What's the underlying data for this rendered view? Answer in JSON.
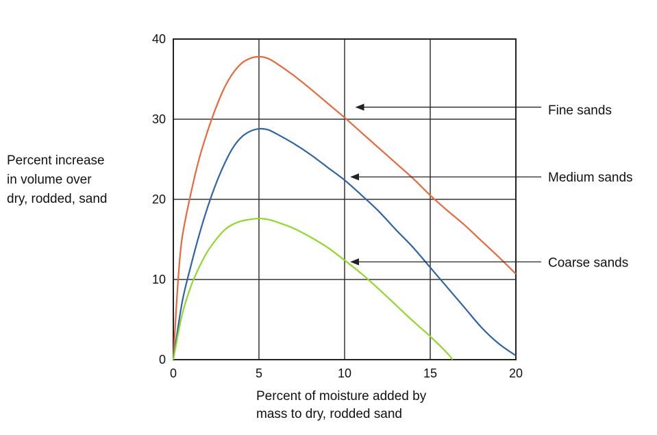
{
  "chart_data": {
    "type": "line",
    "xlabel": [
      "Percent of moisture added by",
      "mass to dry, rodded sand"
    ],
    "ylabel": [
      "Percent increase",
      "in volume over",
      "dry, rodded, sand"
    ],
    "xlim": [
      0,
      20
    ],
    "ylim": [
      0,
      40
    ],
    "xticks": [
      0,
      5,
      10,
      15,
      20
    ],
    "yticks": [
      0,
      10,
      20,
      30,
      40
    ],
    "grid": true,
    "series": [
      {
        "name": "Fine sands",
        "color": "#e8683c",
        "x": [
          0,
          0.25,
          0.5,
          1,
          1.5,
          2,
          2.5,
          3,
          3.5,
          4,
          4.5,
          5,
          5.5,
          6,
          7,
          8,
          9,
          10,
          11,
          12,
          13,
          14,
          15,
          16,
          17,
          18,
          19,
          20
        ],
        "y": [
          0,
          9,
          15,
          20.5,
          25,
          28.5,
          31.5,
          34,
          35.8,
          37,
          37.6,
          37.8,
          37.6,
          37,
          35.5,
          33.8,
          32,
          30.2,
          28.3,
          26.4,
          24.5,
          22.6,
          20.5,
          18.6,
          16.8,
          14.8,
          12.8,
          10.7
        ]
      },
      {
        "name": "Medium sands",
        "color": "#2e62a8",
        "x": [
          0,
          0.5,
          1,
          1.5,
          2,
          2.5,
          3,
          3.5,
          4,
          4.5,
          5,
          5.5,
          6,
          7,
          8,
          9,
          10,
          11,
          12,
          13,
          14,
          15,
          16,
          17,
          18,
          19,
          20
        ],
        "y": [
          0,
          7,
          11.5,
          15.5,
          19,
          22,
          24.5,
          26.5,
          27.8,
          28.5,
          28.8,
          28.7,
          28.2,
          27,
          25.6,
          24,
          22.4,
          20.5,
          18.5,
          16.2,
          14,
          11.5,
          9,
          6.5,
          4,
          2,
          0.5
        ]
      },
      {
        "name": "Coarse sands",
        "color": "#8fd82c",
        "x": [
          0,
          0.5,
          1,
          1.5,
          2,
          2.5,
          3,
          3.5,
          4,
          4.5,
          5,
          5.5,
          6,
          7,
          8,
          9,
          10,
          11,
          12,
          13,
          14,
          15,
          16,
          16.3
        ],
        "y": [
          0,
          5.5,
          9,
          11.5,
          13.5,
          15,
          16.2,
          16.9,
          17.3,
          17.5,
          17.6,
          17.5,
          17.2,
          16.4,
          15.3,
          14,
          12.4,
          10.7,
          8.8,
          6.8,
          4.8,
          2.9,
          0.8,
          0
        ]
      }
    ],
    "annotations": [
      {
        "text": "Fine sands",
        "arrow_to": [
          10.6,
          31.5
        ],
        "label_y": 31.2
      },
      {
        "text": "Medium sands",
        "arrow_to": [
          10.3,
          22.8
        ],
        "label_y": 22.8
      },
      {
        "text": "Coarse sands",
        "arrow_to": [
          10.3,
          12.2
        ],
        "label_y": 12.2
      }
    ]
  }
}
